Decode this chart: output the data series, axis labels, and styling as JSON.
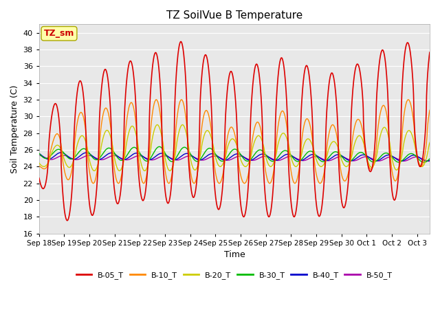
{
  "title": "TZ SoilVue B Temperature",
  "ylabel": "Soil Temperature (C)",
  "xlabel": "Time",
  "ylim": [
    16,
    41
  ],
  "yticks": [
    16,
    18,
    20,
    22,
    24,
    26,
    28,
    30,
    32,
    34,
    36,
    38,
    40
  ],
  "bg_color": "#e8e8e8",
  "fig_bg": "#ffffff",
  "series": [
    {
      "label": "B-05_T",
      "color": "#dd0000"
    },
    {
      "label": "B-10_T",
      "color": "#ff8800"
    },
    {
      "label": "B-20_T",
      "color": "#cccc00"
    },
    {
      "label": "B-30_T",
      "color": "#00bb00"
    },
    {
      "label": "B-40_T",
      "color": "#0000cc"
    },
    {
      "label": "B-50_T",
      "color": "#aa00aa"
    }
  ],
  "annotation_label": "TZ_sm",
  "annotation_color": "#cc0000",
  "annotation_bg": "#ffffaa",
  "annotation_border": "#aaa800",
  "n_points": 1500,
  "total_days": 15.5,
  "xtick_dates": [
    "Sep 18",
    "Sep 19",
    "Sep 20",
    "Sep 21",
    "Sep 22",
    "Sep 23",
    "Sep 24",
    "Sep 25",
    "Sep 26",
    "Sep 27",
    "Sep 28",
    "Sep 29",
    "Sep 30",
    "Oct 1",
    "Oct 2",
    "Oct 3"
  ],
  "grid_color": "#ffffff",
  "linewidth_05": 1.2,
  "linewidth_rest": 1.0,
  "figsize": [
    6.4,
    4.8
  ],
  "dpi": 100
}
